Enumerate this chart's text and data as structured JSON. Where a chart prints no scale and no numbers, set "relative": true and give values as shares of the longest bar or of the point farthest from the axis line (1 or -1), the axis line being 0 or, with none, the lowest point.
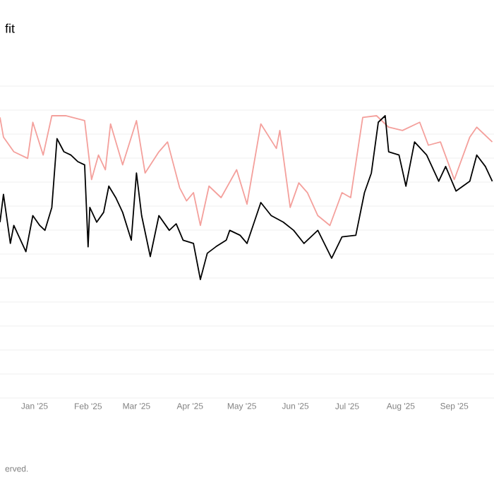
{
  "chart_data": {
    "type": "line",
    "title": "fit",
    "relative": true,
    "grid": "y",
    "annotations": [
      "erved."
    ],
    "xlim": [
      "2024-12-12",
      "2025-09-24"
    ],
    "xticks": [
      {
        "value": "2025-01-01",
        "label": "Jan '25"
      },
      {
        "value": "2025-02-01",
        "label": "Feb '25"
      },
      {
        "value": "2025-03-01",
        "label": "Mar '25"
      },
      {
        "value": "2025-04-01",
        "label": "Apr '25"
      },
      {
        "value": "2025-05-01",
        "label": "May '25"
      },
      {
        "value": "2025-06-01",
        "label": "Jun '25"
      },
      {
        "value": "2025-07-01",
        "label": "Jul '25"
      },
      {
        "value": "2025-08-01",
        "label": "Aug '25"
      },
      {
        "value": "2025-09-01",
        "label": "Sep '25"
      }
    ],
    "series": [
      {
        "color": "#f4a09c",
        "x": [
          "2024-12-12",
          "2024-12-14",
          "2024-12-20",
          "2024-12-28",
          "2024-12-31",
          "2025-01-06",
          "2025-01-11",
          "2025-01-19",
          "2025-01-30",
          "2025-02-03",
          "2025-02-07",
          "2025-02-11",
          "2025-02-14",
          "2025-02-21",
          "2025-03-01",
          "2025-03-06",
          "2025-03-14",
          "2025-03-19",
          "2025-03-26",
          "2025-03-30",
          "2025-04-03",
          "2025-04-07",
          "2025-04-12",
          "2025-04-19",
          "2025-04-28",
          "2025-05-04",
          "2025-05-12",
          "2025-05-21",
          "2025-05-23",
          "2025-05-29",
          "2025-06-03",
          "2025-06-08",
          "2025-06-14",
          "2025-06-21",
          "2025-06-28",
          "2025-07-03",
          "2025-07-10",
          "2025-07-18",
          "2025-07-25",
          "2025-08-02",
          "2025-08-12",
          "2025-08-17",
          "2025-08-24",
          "2025-09-01",
          "2025-09-10",
          "2025-09-14",
          "2025-09-23"
        ],
        "values": [
          0.99,
          0.87,
          0.78,
          0.74,
          0.96,
          0.76,
          1,
          1,
          0.97,
          0.61,
          0.76,
          0.67,
          0.95,
          0.7,
          0.97,
          0.65,
          0.78,
          0.84,
          0.56,
          0.48,
          0.53,
          0.33,
          0.57,
          0.5,
          0.67,
          0.46,
          0.95,
          0.8,
          0.91,
          0.44,
          0.59,
          0.53,
          0.39,
          0.33,
          0.53,
          0.5,
          0.99,
          1,
          0.93,
          0.91,
          0.96,
          0.82,
          0.84,
          0.61,
          0.87,
          0.93,
          0.84
        ]
      },
      {
        "color": "#000000",
        "x": [
          "2024-12-12",
          "2024-12-14",
          "2024-12-18",
          "2024-12-20",
          "2024-12-27",
          "2024-12-31",
          "2025-01-04",
          "2025-01-07",
          "2025-01-11",
          "2025-01-14",
          "2025-01-18",
          "2025-01-22",
          "2025-01-26",
          "2025-01-30",
          "2025-02-01",
          "2025-02-02",
          "2025-02-06",
          "2025-02-10",
          "2025-02-13",
          "2025-02-17",
          "2025-02-21",
          "2025-02-26",
          "2025-03-01",
          "2025-03-04",
          "2025-03-09",
          "2025-03-14",
          "2025-03-20",
          "2025-03-24",
          "2025-03-28",
          "2025-04-03",
          "2025-04-07",
          "2025-04-11",
          "2025-04-16",
          "2025-04-22",
          "2025-04-24",
          "2025-04-30",
          "2025-05-04",
          "2025-05-12",
          "2025-05-18",
          "2025-05-25",
          "2025-05-31",
          "2025-06-06",
          "2025-06-14",
          "2025-06-22",
          "2025-06-28",
          "2025-07-06",
          "2025-07-11",
          "2025-07-15",
          "2025-07-19",
          "2025-07-23",
          "2025-07-25",
          "2025-07-31",
          "2025-08-04",
          "2025-08-09",
          "2025-08-16",
          "2025-08-23",
          "2025-08-27",
          "2025-09-02",
          "2025-09-10",
          "2025-09-14",
          "2025-09-19",
          "2025-09-23"
        ],
        "values": [
          0.35,
          0.52,
          0.22,
          0.33,
          0.17,
          0.39,
          0.33,
          0.3,
          0.44,
          0.86,
          0.78,
          0.76,
          0.72,
          0.7,
          0.2,
          0.44,
          0.35,
          0.41,
          0.57,
          0.5,
          0.41,
          0.24,
          0.65,
          0.39,
          0.14,
          0.39,
          0.3,
          0.34,
          0.24,
          0.22,
          0,
          0.16,
          0.2,
          0.24,
          0.3,
          0.27,
          0.22,
          0.47,
          0.39,
          0.35,
          0.3,
          0.22,
          0.3,
          0.13,
          0.26,
          0.27,
          0.53,
          0.65,
          0.96,
          1,
          0.78,
          0.76,
          0.57,
          0.84,
          0.76,
          0.6,
          0.69,
          0.54,
          0.6,
          0.76,
          0.69,
          0.6
        ]
      }
    ]
  }
}
